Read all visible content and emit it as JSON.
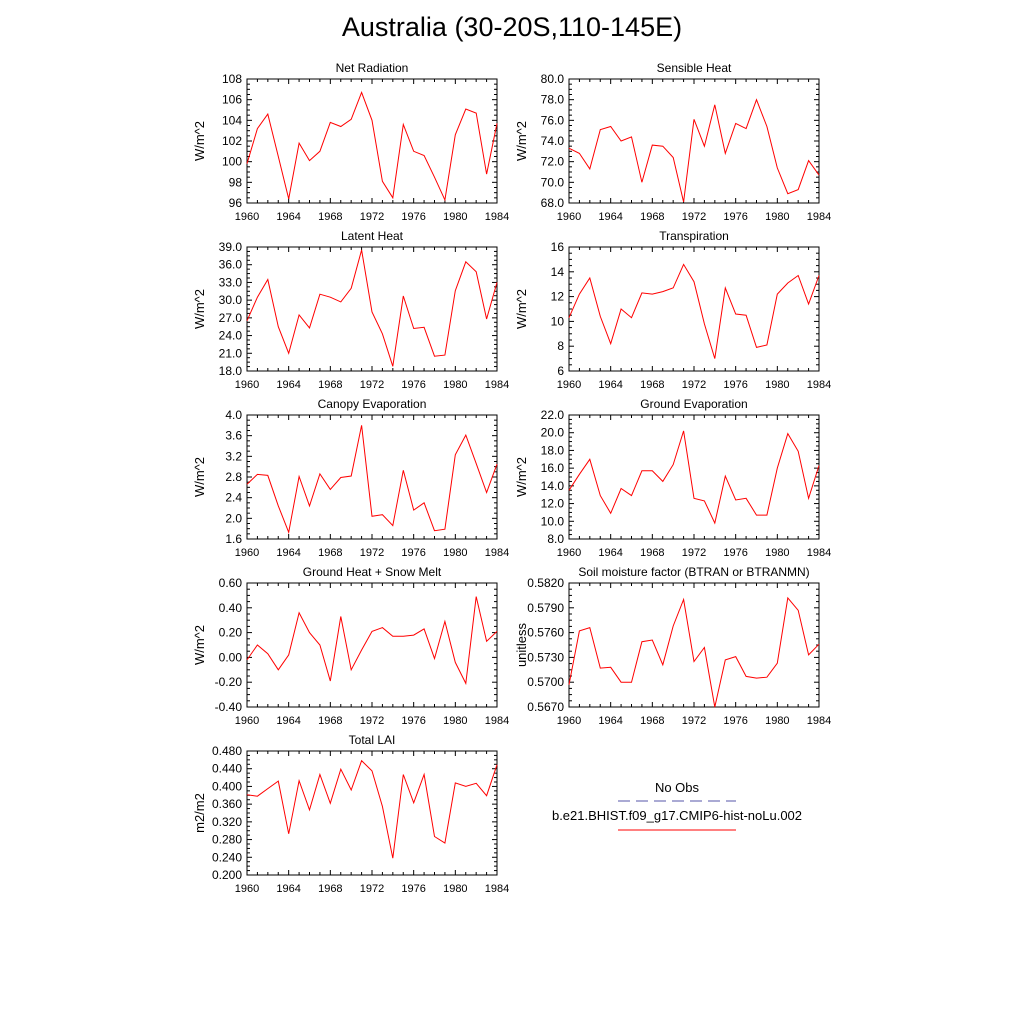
{
  "page_title": "Australia (30-20S,110-145E)",
  "legend": {
    "obs_label": "No Obs",
    "obs_color": "#5555aa",
    "model_label": "b.e21.BHIST.f09_g17.CMIP6-hist-noLu.002",
    "model_color": "#ff0000"
  },
  "chart_data": [
    {
      "type": "line",
      "title": "Net Radiation",
      "ylabel": "W/m^2",
      "xlabel": "",
      "x": [
        1960,
        1961,
        1962,
        1963,
        1964,
        1965,
        1966,
        1967,
        1968,
        1969,
        1970,
        1971,
        1972,
        1973,
        1974,
        1975,
        1976,
        1977,
        1978,
        1979,
        1980,
        1981,
        1982,
        1983,
        1984
      ],
      "values": [
        99.8,
        103.2,
        104.6,
        100.5,
        96.4,
        101.8,
        100.1,
        101.0,
        103.8,
        103.4,
        104.1,
        106.7,
        104.0,
        98.1,
        96.5,
        103.6,
        101.0,
        100.6,
        98.5,
        96.3,
        102.6,
        105.1,
        104.7,
        98.8,
        103.7
      ],
      "ylim": [
        96,
        108
      ],
      "yticks": [
        "96",
        "98",
        "100",
        "102",
        "104",
        "106",
        "108"
      ],
      "xlim": [
        1960,
        1984
      ],
      "xticks": [
        "1960",
        "1964",
        "1968",
        "1972",
        "1976",
        "1980",
        "1984"
      ],
      "grid": false
    },
    {
      "type": "line",
      "title": "Sensible Heat",
      "ylabel": "W/m^2",
      "xlabel": "",
      "x": [
        1960,
        1961,
        1962,
        1963,
        1964,
        1965,
        1966,
        1967,
        1968,
        1969,
        1970,
        1971,
        1972,
        1973,
        1974,
        1975,
        1976,
        1977,
        1978,
        1979,
        1980,
        1981,
        1982,
        1983,
        1984
      ],
      "values": [
        73.3,
        72.8,
        71.3,
        75.1,
        75.4,
        74.0,
        74.4,
        70.0,
        73.6,
        73.5,
        72.4,
        68.1,
        76.1,
        73.5,
        77.5,
        72.8,
        75.7,
        75.2,
        78.0,
        75.4,
        71.4,
        68.9,
        69.3,
        72.1,
        70.7
      ],
      "ylim": [
        68,
        80
      ],
      "yticks": [
        "68.0",
        "70.0",
        "72.0",
        "74.0",
        "76.0",
        "78.0",
        "80.0"
      ],
      "xlim": [
        1960,
        1984
      ],
      "xticks": [
        "1960",
        "1964",
        "1968",
        "1972",
        "1976",
        "1980",
        "1984"
      ],
      "grid": false
    },
    {
      "type": "line",
      "title": "Latent Heat",
      "ylabel": "W/m^2",
      "xlabel": "",
      "x": [
        1960,
        1961,
        1962,
        1963,
        1964,
        1965,
        1966,
        1967,
        1968,
        1969,
        1970,
        1971,
        1972,
        1973,
        1974,
        1975,
        1976,
        1977,
        1978,
        1979,
        1980,
        1981,
        1982,
        1983,
        1984
      ],
      "values": [
        26.5,
        30.5,
        33.5,
        25.5,
        21.0,
        27.5,
        25.3,
        31.0,
        30.5,
        29.7,
        32.0,
        38.5,
        28.0,
        24.3,
        18.8,
        30.7,
        25.2,
        25.4,
        20.5,
        20.7,
        31.6,
        36.5,
        34.8,
        26.8,
        33.0
      ],
      "ylim": [
        18,
        39
      ],
      "yticks": [
        "18.0",
        "21.0",
        "24.0",
        "27.0",
        "30.0",
        "33.0",
        "36.0",
        "39.0"
      ],
      "xlim": [
        1960,
        1984
      ],
      "xticks": [
        "1960",
        "1964",
        "1968",
        "1972",
        "1976",
        "1980",
        "1984"
      ],
      "grid": false
    },
    {
      "type": "line",
      "title": "Transpiration",
      "ylabel": "W/m^2",
      "xlabel": "",
      "x": [
        1960,
        1961,
        1962,
        1963,
        1964,
        1965,
        1966,
        1967,
        1968,
        1969,
        1970,
        1971,
        1972,
        1973,
        1974,
        1975,
        1976,
        1977,
        1978,
        1979,
        1980,
        1981,
        1982,
        1983,
        1984
      ],
      "values": [
        10.3,
        12.2,
        13.5,
        10.4,
        8.2,
        11.0,
        10.3,
        12.3,
        12.2,
        12.4,
        12.7,
        14.6,
        13.2,
        9.8,
        7.0,
        12.7,
        10.6,
        10.5,
        7.9,
        8.1,
        12.2,
        13.1,
        13.7,
        11.4,
        13.7
      ],
      "ylim": [
        6,
        16
      ],
      "yticks": [
        "6",
        "8",
        "10",
        "12",
        "14",
        "16"
      ],
      "xlim": [
        1960,
        1984
      ],
      "xticks": [
        "1960",
        "1964",
        "1968",
        "1972",
        "1976",
        "1980",
        "1984"
      ],
      "grid": false
    },
    {
      "type": "line",
      "title": "Canopy Evaporation",
      "ylabel": "W/m^2",
      "xlabel": "",
      "x": [
        1960,
        1961,
        1962,
        1963,
        1964,
        1965,
        1966,
        1967,
        1968,
        1969,
        1970,
        1971,
        1972,
        1973,
        1974,
        1975,
        1976,
        1977,
        1978,
        1979,
        1980,
        1981,
        1982,
        1983,
        1984
      ],
      "values": [
        2.66,
        2.85,
        2.83,
        2.24,
        1.73,
        2.81,
        2.24,
        2.86,
        2.56,
        2.79,
        2.82,
        3.8,
        2.04,
        2.07,
        1.86,
        2.93,
        2.16,
        2.3,
        1.76,
        1.79,
        3.23,
        3.61,
        3.06,
        2.5,
        3.05
      ],
      "ylim": [
        1.6,
        4.0
      ],
      "yticks": [
        "1.6",
        "2.0",
        "2.4",
        "2.8",
        "3.2",
        "3.6",
        "4.0"
      ],
      "xlim": [
        1960,
        1984
      ],
      "xticks": [
        "1960",
        "1964",
        "1968",
        "1972",
        "1976",
        "1980",
        "1984"
      ],
      "grid": false
    },
    {
      "type": "line",
      "title": "Ground Evaporation",
      "ylabel": "W/m^2",
      "xlabel": "",
      "x": [
        1960,
        1961,
        1962,
        1963,
        1964,
        1965,
        1966,
        1967,
        1968,
        1969,
        1970,
        1971,
        1972,
        1973,
        1974,
        1975,
        1976,
        1977,
        1978,
        1979,
        1980,
        1981,
        1982,
        1983,
        1984
      ],
      "values": [
        13.5,
        15.3,
        17.0,
        12.9,
        10.9,
        13.7,
        12.9,
        15.7,
        15.7,
        14.5,
        16.4,
        20.2,
        12.6,
        12.3,
        9.8,
        15.1,
        12.4,
        12.6,
        10.7,
        10.7,
        16.0,
        19.9,
        17.9,
        12.6,
        16.3
      ],
      "ylim": [
        8,
        22
      ],
      "yticks": [
        "8.0",
        "10.0",
        "12.0",
        "14.0",
        "16.0",
        "18.0",
        "20.0",
        "22.0"
      ],
      "xlim": [
        1960,
        1984
      ],
      "xticks": [
        "1960",
        "1964",
        "1968",
        "1972",
        "1976",
        "1980",
        "1984"
      ],
      "grid": false
    },
    {
      "type": "line",
      "title": "Ground Heat + Snow Melt",
      "ylabel": "W/m^2",
      "xlabel": "",
      "x": [
        1960,
        1961,
        1962,
        1963,
        1964,
        1965,
        1966,
        1967,
        1968,
        1969,
        1970,
        1971,
        1972,
        1973,
        1974,
        1975,
        1976,
        1977,
        1978,
        1979,
        1980,
        1981,
        1982,
        1983,
        1984
      ],
      "values": [
        -0.02,
        0.1,
        0.03,
        -0.1,
        0.02,
        0.36,
        0.2,
        0.1,
        -0.19,
        0.33,
        -0.1,
        0.06,
        0.21,
        0.24,
        0.17,
        0.17,
        0.18,
        0.23,
        -0.01,
        0.29,
        -0.04,
        -0.21,
        0.49,
        0.13,
        0.21
      ],
      "ylim": [
        -0.4,
        0.6
      ],
      "yticks": [
        "-0.40",
        "-0.20",
        "0.00",
        "0.20",
        "0.40",
        "0.60"
      ],
      "xlim": [
        1960,
        1984
      ],
      "xticks": [
        "1960",
        "1964",
        "1968",
        "1972",
        "1976",
        "1980",
        "1984"
      ],
      "grid": false
    },
    {
      "type": "line",
      "title": "Soil moisture factor (BTRAN or BTRANMN)",
      "ylabel": "unitless",
      "xlabel": "",
      "x": [
        1960,
        1961,
        1962,
        1963,
        1964,
        1965,
        1966,
        1967,
        1968,
        1969,
        1970,
        1971,
        1972,
        1973,
        1974,
        1975,
        1976,
        1977,
        1978,
        1979,
        1980,
        1981,
        1982,
        1983,
        1984
      ],
      "values": [
        0.5697,
        0.5762,
        0.5766,
        0.5717,
        0.5718,
        0.57,
        0.57,
        0.5749,
        0.5751,
        0.5721,
        0.5768,
        0.58,
        0.5725,
        0.5742,
        0.567,
        0.5727,
        0.5731,
        0.5707,
        0.5705,
        0.5706,
        0.5723,
        0.5802,
        0.5787,
        0.5733,
        0.5746
      ],
      "ylim": [
        0.567,
        0.582
      ],
      "yticks": [
        "0.5670",
        "0.5700",
        "0.5730",
        "0.5760",
        "0.5790",
        "0.5820"
      ],
      "xlim": [
        1960,
        1984
      ],
      "xticks": [
        "1960",
        "1964",
        "1968",
        "1972",
        "1976",
        "1980",
        "1984"
      ],
      "grid": false
    },
    {
      "type": "line",
      "title": "Total LAI",
      "ylabel": "m2/m2",
      "xlabel": "",
      "x": [
        1960,
        1961,
        1962,
        1963,
        1964,
        1965,
        1966,
        1967,
        1968,
        1969,
        1970,
        1971,
        1972,
        1973,
        1974,
        1975,
        1976,
        1977,
        1978,
        1979,
        1980,
        1981,
        1982,
        1983,
        1984
      ],
      "values": [
        0.381,
        0.378,
        0.395,
        0.412,
        0.293,
        0.413,
        0.347,
        0.427,
        0.362,
        0.439,
        0.392,
        0.458,
        0.435,
        0.355,
        0.238,
        0.427,
        0.363,
        0.427,
        0.287,
        0.272,
        0.408,
        0.4,
        0.407,
        0.379,
        0.449
      ],
      "ylim": [
        0.2,
        0.48
      ],
      "yticks": [
        "0.200",
        "0.240",
        "0.280",
        "0.320",
        "0.360",
        "0.400",
        "0.440",
        "0.480"
      ],
      "xlim": [
        1960,
        1984
      ],
      "xticks": [
        "1960",
        "1964",
        "1968",
        "1972",
        "1976",
        "1980",
        "1984"
      ],
      "grid": false
    }
  ]
}
